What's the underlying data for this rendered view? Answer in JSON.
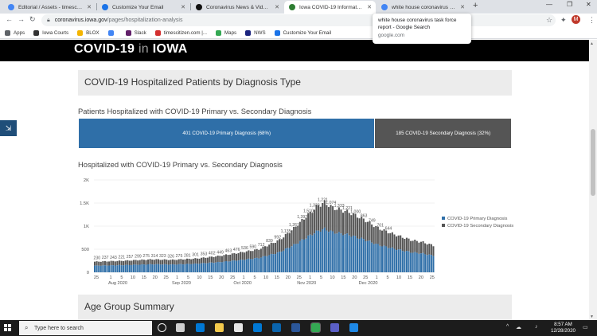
{
  "browser": {
    "tabs": [
      {
        "title": "Editorial / Assets - timescitizen.co",
        "favicon_color": "#4285f4",
        "active": false
      },
      {
        "title": "Customize Your Email",
        "favicon_color": "#1a73e8",
        "active": false
      },
      {
        "title": "Coronavirus News & Videos - AB",
        "favicon_color": "#111111",
        "active": false
      },
      {
        "title": "Iowa COVID-19 Information - Ho",
        "favicon_color": "#2e7d32",
        "active": true
      },
      {
        "title": "white house coronavirus task fo",
        "favicon_color": "#4285f4",
        "active": false
      }
    ],
    "url_host": "coronavirus.iowa.gov",
    "url_path": "/pages/hospitalization-analysis",
    "avatar_letter": "M",
    "bookmarks": [
      {
        "label": "Apps",
        "icon_color": "#5f6368"
      },
      {
        "label": "Iowa Courts",
        "icon_color": "#333333"
      },
      {
        "label": "BLOX",
        "icon_color": "#f4b400"
      },
      {
        "label": "",
        "icon_color": "#4285f4"
      },
      {
        "label": "Slack",
        "icon_color": "#611f69"
      },
      {
        "label": "timescitizen.com |...",
        "icon_color": "#d32f2f"
      },
      {
        "label": "Maps",
        "icon_color": "#34a853"
      },
      {
        "label": "NWS",
        "icon_color": "#1a237e"
      },
      {
        "label": "Customize Your Email",
        "icon_color": "#1a73e8"
      }
    ],
    "tooltip": {
      "title": "white house coronavirus task force report - Google Search",
      "domain": "google.com"
    }
  },
  "page": {
    "site_title_pre": "COVID-19",
    "site_title_in": "in",
    "site_title_post": "IOWA",
    "section1_title": "COVID-19 Hospitalized Patients by Diagnosis Type",
    "subtitle1": "Patients Hospitalized with COVID-19 Primary vs. Secondary Diagnosis",
    "stacked_bar": [
      {
        "label": "401 COVID-19 Primary Diagnosis (68%)",
        "fraction": 0.684,
        "color": "#2f6fa8"
      },
      {
        "label": "185 COVID-19 Secondary Diagnosis (32%)",
        "fraction": 0.316,
        "color": "#555555"
      }
    ],
    "subtitle2": "Hospitalized with COVID-19 Primary vs. Secondary Diagnosis",
    "section2_title": "Age Group Summary"
  },
  "chart_data": {
    "type": "bar",
    "stacked": true,
    "y_ticks": [
      "0",
      "500",
      "1K",
      "1.5K",
      "2K"
    ],
    "ylim": [
      0,
      2000
    ],
    "day_ticks": [
      "25",
      "1",
      "5",
      "10",
      "15",
      "20",
      "25",
      "1",
      "5",
      "10",
      "15",
      "20",
      "25",
      "1",
      "5",
      "10",
      "15",
      "20",
      "25",
      "1",
      "5",
      "10",
      "15",
      "20",
      "25",
      "1",
      "5",
      "10",
      "15",
      "20",
      "25"
    ],
    "month_labels": [
      "Aug 2020",
      "Sep 2020",
      "Oct 2020",
      "Nov 2020",
      "Dec 2020"
    ],
    "series": [
      {
        "name": "COVID-19 Primary Diagnosis",
        "color": "#2f6fa8"
      },
      {
        "name": "COVID-19 Secondary Diagnosis",
        "color": "#555555"
      }
    ],
    "totals_anchor": [
      [
        0,
        230
      ],
      [
        14,
        250
      ],
      [
        28,
        280
      ],
      [
        38,
        270
      ],
      [
        50,
        300
      ],
      [
        60,
        350
      ],
      [
        70,
        420
      ],
      [
        80,
        500
      ],
      [
        90,
        700
      ],
      [
        97,
        950
      ],
      [
        104,
        1250
      ],
      [
        109,
        1450
      ],
      [
        112,
        1510
      ],
      [
        116,
        1400
      ],
      [
        124,
        1300
      ],
      [
        131,
        1150
      ],
      [
        138,
        960
      ],
      [
        146,
        820
      ],
      [
        154,
        700
      ],
      [
        160,
        650
      ],
      [
        165,
        580
      ]
    ],
    "primary_share": 0.62,
    "data_labels": [
      {
        "i": 1,
        "text": "230"
      },
      {
        "i": 5,
        "text": "237"
      },
      {
        "i": 9,
        "text": "243"
      },
      {
        "i": 13,
        "text": "221"
      },
      {
        "i": 17,
        "text": "257"
      },
      {
        "i": 21,
        "text": "299"
      },
      {
        "i": 25,
        "text": "275"
      },
      {
        "i": 29,
        "text": "314"
      },
      {
        "i": 33,
        "text": "323"
      },
      {
        "i": 37,
        "text": "326"
      },
      {
        "i": 41,
        "text": "275"
      },
      {
        "i": 45,
        "text": "281"
      },
      {
        "i": 49,
        "text": "301"
      },
      {
        "i": 53,
        "text": "353"
      },
      {
        "i": 57,
        "text": "402"
      },
      {
        "i": 61,
        "text": "449"
      },
      {
        "i": 65,
        "text": "463"
      },
      {
        "i": 69,
        "text": "476"
      },
      {
        "i": 73,
        "text": "536"
      },
      {
        "i": 77,
        "text": "590"
      },
      {
        "i": 81,
        "text": "712"
      },
      {
        "i": 85,
        "text": "839"
      },
      {
        "i": 89,
        "text": "992"
      },
      {
        "i": 93,
        "text": "1,135"
      },
      {
        "i": 97,
        "text": "1,261"
      },
      {
        "i": 101,
        "text": "1,392"
      },
      {
        "i": 104,
        "text": "1,510"
      },
      {
        "i": 107,
        "text": "1,333"
      },
      {
        "i": 111,
        "text": "1,221"
      },
      {
        "i": 115,
        "text": "1,074"
      },
      {
        "i": 119,
        "text": "1,333"
      },
      {
        "i": 123,
        "text": "1,221"
      },
      {
        "i": 127,
        "text": "1,000"
      },
      {
        "i": 131,
        "text": "863"
      },
      {
        "i": 135,
        "text": "749"
      },
      {
        "i": 139,
        "text": "701"
      },
      {
        "i": 143,
        "text": "644"
      }
    ]
  },
  "taskbar": {
    "search_placeholder": "Type here to search",
    "time": "8:57 AM",
    "date": "12/28/2020",
    "notification_count": "2",
    "apps": [
      {
        "name": "cortana",
        "color": "#f3f3f3"
      },
      {
        "name": "task-view",
        "color": "#cfcfcf"
      },
      {
        "name": "edge",
        "color": "#0078d4"
      },
      {
        "name": "file-explorer",
        "color": "#f2c94c"
      },
      {
        "name": "store",
        "color": "#e6e6e6"
      },
      {
        "name": "mail",
        "color": "#0078d4"
      },
      {
        "name": "outlook",
        "color": "#0a64ad"
      },
      {
        "name": "word",
        "color": "#2b579a"
      },
      {
        "name": "chrome",
        "color": "#34a853"
      },
      {
        "name": "teams",
        "color": "#5b5fc7"
      },
      {
        "name": "photos",
        "color": "#1e88e5"
      }
    ]
  }
}
